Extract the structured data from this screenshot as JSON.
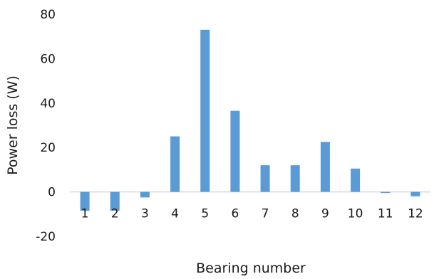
{
  "chart_data": {
    "type": "bar",
    "title": "",
    "xlabel": "Bearing number",
    "ylabel": "Power loss (W)",
    "categories": [
      "1",
      "2",
      "3",
      "4",
      "5",
      "6",
      "7",
      "8",
      "9",
      "10",
      "11",
      "12"
    ],
    "values": [
      -8.5,
      -8.5,
      -2.5,
      25,
      73,
      36.5,
      12,
      12,
      22.5,
      10.5,
      -0.5,
      -2
    ],
    "ylim": [
      -20,
      80
    ],
    "yticks": [
      "-20",
      "0",
      "20",
      "40",
      "60",
      "80"
    ],
    "grid": false,
    "legend": "none",
    "bar_color": "#5B9BD5",
    "axis_color": "#d9d9d9"
  }
}
